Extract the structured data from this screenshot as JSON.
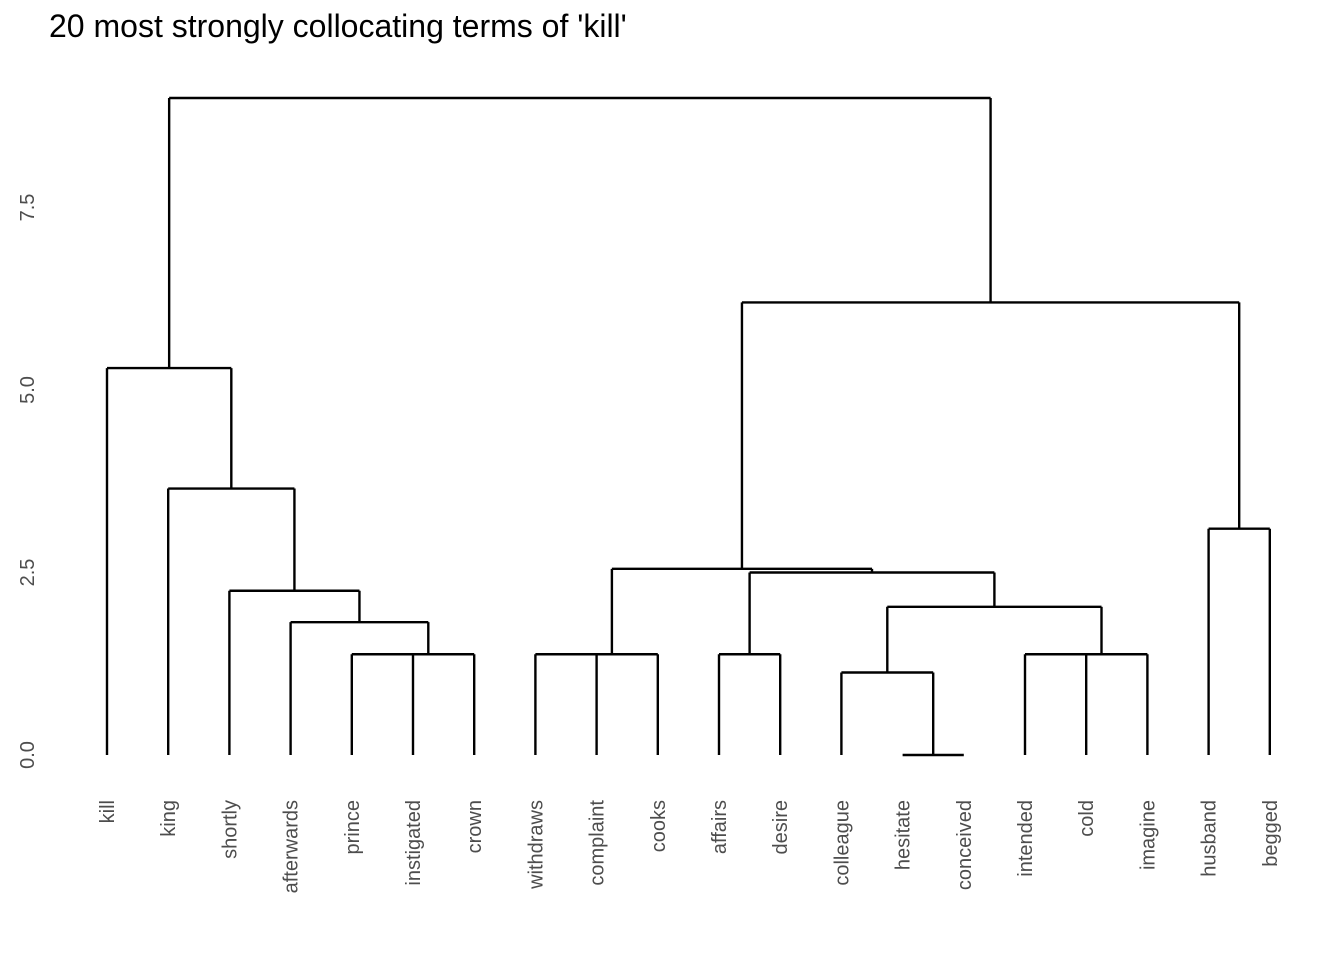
{
  "chart_data": {
    "type": "dendrogram",
    "title": "20 most strongly collocating terms of 'kill'",
    "xlabel": "",
    "ylabel": "",
    "ylim": [
      0,
      9.3
    ],
    "y_ticks": [
      {
        "value": 0.0,
        "label": "0.0"
      },
      {
        "value": 2.5,
        "label": "2.5"
      },
      {
        "value": 5.0,
        "label": "5.0"
      },
      {
        "value": 7.5,
        "label": "7.5"
      }
    ],
    "grid": false,
    "leaves": [
      "kill",
      "king",
      "shortly",
      "afterwards",
      "prince",
      "instigated",
      "crown",
      "withdraws",
      "complaint",
      "cooks",
      "affairs",
      "desire",
      "colleague",
      "hesitate",
      "conceived",
      "intended",
      "cold",
      "imagine",
      "husband",
      "begged"
    ],
    "merges": [
      {
        "a": "prince",
        "b": "instigated",
        "height": 1.38
      },
      {
        "a": "instigated",
        "b": "crown",
        "height": 1.38
      },
      {
        "a": "withdraws",
        "b": "complaint",
        "height": 1.38
      },
      {
        "a": "complaint",
        "b": "cooks",
        "height": 1.38
      },
      {
        "a": "affairs",
        "b": "desire",
        "height": 1.38
      },
      {
        "a": "intended",
        "b": "cold",
        "height": 1.38
      },
      {
        "a": "cold",
        "b": "imagine",
        "height": 1.38
      },
      {
        "a": "hesitate",
        "b": "conceived",
        "height": 0.0
      },
      {
        "a": "colleague",
        "b": "hesitate+conceived",
        "height": 1.13
      },
      {
        "a": "afterwards",
        "b": "prince+instigated+crown",
        "height": 1.82
      },
      {
        "a": "colleague+hesitate+conceived",
        "b": "intended+cold+imagine",
        "height": 2.03
      },
      {
        "a": "shortly",
        "b": "afterwards+prince+instigated+crown",
        "height": 2.25
      },
      {
        "a": "affairs+desire",
        "b": "colleague..imagine",
        "height": 2.5
      },
      {
        "a": "withdraws+complaint+cooks",
        "b": "affairs..imagine",
        "height": 2.55
      },
      {
        "a": "husband",
        "b": "begged",
        "height": 3.1
      },
      {
        "a": "king",
        "b": "shortly..crown",
        "height": 3.65
      },
      {
        "a": "kill",
        "b": "king..crown",
        "height": 5.3
      },
      {
        "a": "withdraws..imagine",
        "b": "husband+begged",
        "height": 6.2
      },
      {
        "a": "kill..crown",
        "b": "withdraws..begged",
        "height": 9.0
      }
    ]
  }
}
